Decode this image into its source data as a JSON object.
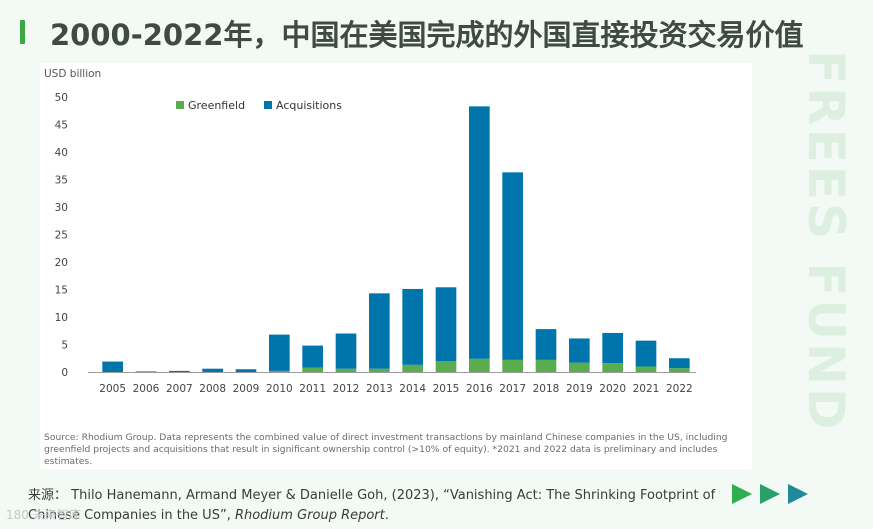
{
  "page": {
    "title": "2000-2022年，中国在美国完成的外国直接投资交易价值",
    "watermark": "FREES FUND",
    "citation_prefix": "来源：",
    "citation_body": " Thilo Hanemann, Armand Meyer & Danielle Goh, (2023), “Vanishing Act: The Shrinking Footprint of Chinese Companies in the US”, ",
    "citation_journal": "Rhodium Group Report",
    "citation_end": ".",
    "logo_text": "180 未来智库",
    "colors": {
      "accent_green": "#3aa845",
      "arrow_dark": "#1f8a9c",
      "arrow_green": "#2fae4e"
    },
    "icons": [
      "play-arrow-icon",
      "play-arrow-icon",
      "play-arrow-icon"
    ]
  },
  "chart_data": {
    "type": "bar",
    "stacked": true,
    "title": "",
    "ylabel": "USD billion",
    "xlabel": "",
    "ylim": [
      0,
      50
    ],
    "yticks": [
      0,
      5,
      10,
      15,
      20,
      25,
      30,
      35,
      40,
      45,
      50
    ],
    "grid": false,
    "legend_position": "top-left",
    "categories": [
      "2005",
      "2006",
      "2007",
      "2008",
      "2009",
      "2010",
      "2011",
      "2012",
      "2013",
      "2014",
      "2015",
      "2016",
      "2017",
      "2018",
      "2019",
      "2020",
      "2021",
      "2022"
    ],
    "series": [
      {
        "name": "Greenfield",
        "color": "#5aad4e",
        "values": [
          0.0,
          0.0,
          0.0,
          0.0,
          0.0,
          0.2,
          0.8,
          0.6,
          0.6,
          1.3,
          2.0,
          2.4,
          2.2,
          2.2,
          1.7,
          1.6,
          1.0,
          0.7
        ]
      },
      {
        "name": "Acquisitions",
        "color": "#0075ac",
        "values": [
          1.9,
          0.1,
          0.2,
          0.6,
          0.5,
          6.6,
          4.0,
          6.4,
          13.7,
          13.8,
          13.4,
          45.9,
          34.1,
          5.6,
          4.4,
          5.5,
          4.7,
          1.8
        ]
      }
    ],
    "note": "Source: Rhodium Group. Data represents the combined value of direct investment transactions by mainland Chinese companies in the US, including greenfield projects and acquisitions that result in significant ownership control (>10% of equity). *2021 and 2022 data is preliminary and includes estimates."
  }
}
